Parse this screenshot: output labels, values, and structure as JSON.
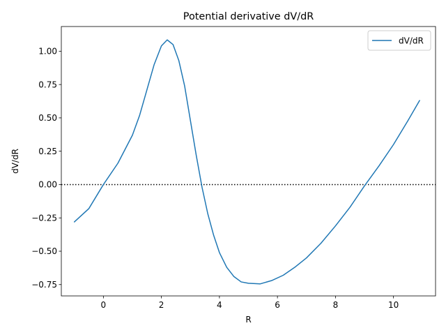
{
  "chart_data": {
    "type": "line",
    "title": "Potential derivative dV/dR",
    "xlabel": "R",
    "ylabel": "dV/dR",
    "xlim": [
      -1.45,
      11.45
    ],
    "ylim": [
      -0.835,
      1.185
    ],
    "xticks": [
      0,
      2,
      4,
      6,
      8,
      10
    ],
    "xtick_labels": [
      "0",
      "2",
      "4",
      "6",
      "8",
      "10"
    ],
    "yticks": [
      -0.75,
      -0.5,
      -0.25,
      0.0,
      0.25,
      0.5,
      0.75,
      1.0
    ],
    "ytick_labels": [
      "−0.75",
      "−0.50",
      "−0.25",
      "0.00",
      "0.25",
      "0.50",
      "0.75",
      "1.00"
    ],
    "grid": false,
    "legend_position": "top-right",
    "series": [
      {
        "name": "dV/dR",
        "color": "#1f77b4",
        "x": [
          -1.0,
          -0.5,
          0.0,
          0.5,
          1.0,
          1.25,
          1.5,
          1.75,
          2.0,
          2.2,
          2.4,
          2.6,
          2.8,
          3.0,
          3.2,
          3.4,
          3.6,
          3.8,
          4.0,
          4.25,
          4.5,
          4.75,
          5.0,
          5.4,
          5.8,
          6.2,
          6.6,
          7.0,
          7.5,
          8.0,
          8.5,
          9.0,
          9.5,
          10.0,
          10.5,
          10.9
        ],
        "y": [
          -0.28,
          -0.18,
          0.0,
          0.16,
          0.37,
          0.52,
          0.71,
          0.9,
          1.04,
          1.085,
          1.05,
          0.93,
          0.74,
          0.48,
          0.22,
          -0.02,
          -0.22,
          -0.38,
          -0.51,
          -0.62,
          -0.69,
          -0.73,
          -0.74,
          -0.745,
          -0.72,
          -0.68,
          -0.62,
          -0.55,
          -0.44,
          -0.31,
          -0.17,
          -0.01,
          0.14,
          0.3,
          0.48,
          0.63
        ]
      }
    ],
    "reference_lines": [
      {
        "axis": "y",
        "value": 0.0,
        "style": "dotted",
        "color": "#000000"
      }
    ]
  }
}
